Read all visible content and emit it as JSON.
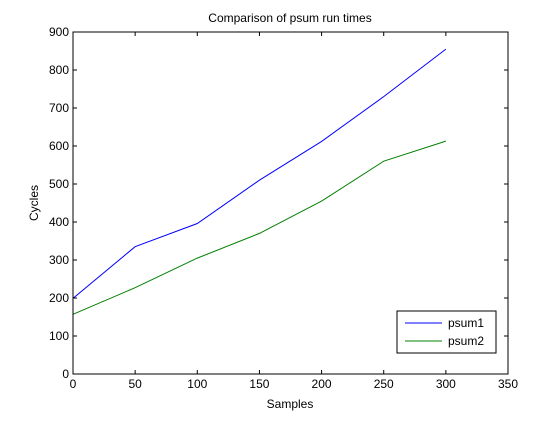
{
  "chart_data": {
    "type": "line",
    "title": "Comparison of psum run times",
    "xlabel": "Samples",
    "ylabel": "Cycles",
    "xlim": [
      0,
      350
    ],
    "ylim": [
      0,
      900
    ],
    "xticks": [
      0,
      50,
      100,
      150,
      200,
      250,
      300,
      350
    ],
    "yticks": [
      0,
      100,
      200,
      300,
      400,
      500,
      600,
      700,
      800,
      900
    ],
    "grid": false,
    "legend_position": "bottom-right",
    "series": [
      {
        "name": "psum1",
        "color": "#0000ff",
        "x": [
          0,
          0,
          0,
          50,
          100,
          150,
          200,
          250,
          300
        ],
        "y": [
          0,
          0,
          199,
          335,
          396,
          510,
          612,
          730,
          855
        ]
      },
      {
        "name": "psum2",
        "color": "#008000",
        "x": [
          0,
          0,
          0,
          50,
          100,
          150,
          200,
          250,
          300
        ],
        "y": [
          0,
          0,
          157,
          227,
          305,
          370,
          455,
          560,
          613
        ]
      }
    ]
  }
}
